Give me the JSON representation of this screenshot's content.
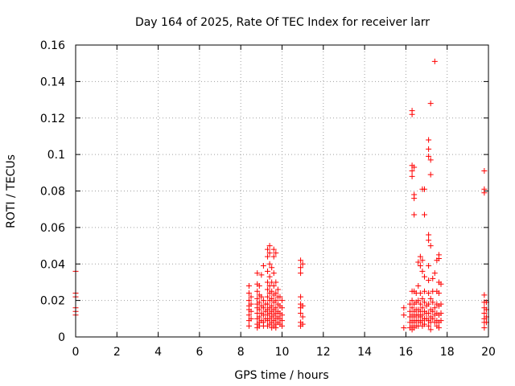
{
  "chart_data": {
    "type": "scatter",
    "title": "Day 164 of 2025, Rate Of TEC Index for receiver larr",
    "xlabel": "GPS time / hours",
    "ylabel": "ROTI / TECUs",
    "xlim": [
      0,
      20
    ],
    "ylim": [
      0,
      0.16
    ],
    "xticks": [
      0,
      2,
      4,
      6,
      8,
      10,
      12,
      14,
      16,
      18,
      20
    ],
    "xtick_labels": [
      "0",
      "2",
      "4",
      "6",
      "8",
      "10",
      "12",
      "14",
      "16",
      "18",
      "20"
    ],
    "yticks": [
      0,
      0.02,
      0.04,
      0.06,
      0.08,
      0.1,
      0.12,
      0.14,
      0.16
    ],
    "ytick_labels": [
      "0",
      "0.02",
      "0.04",
      "0.06",
      "0.08",
      "0.1",
      "0.12",
      "0.14",
      "0.16"
    ],
    "grid": true,
    "marker": "+",
    "color": "#ff0000",
    "series": [
      {
        "name": "ROTI",
        "points": [
          [
            0.0,
            0.036
          ],
          [
            0.0,
            0.024
          ],
          [
            0.0,
            0.022
          ],
          [
            0.0,
            0.016
          ],
          [
            0.0,
            0.014
          ],
          [
            0.0,
            0.012
          ],
          [
            8.4,
            0.028
          ],
          [
            8.4,
            0.024
          ],
          [
            8.4,
            0.02
          ],
          [
            8.4,
            0.017
          ],
          [
            8.4,
            0.015
          ],
          [
            8.4,
            0.012
          ],
          [
            8.4,
            0.009
          ],
          [
            8.4,
            0.006
          ],
          [
            8.5,
            0.022
          ],
          [
            8.5,
            0.018
          ],
          [
            8.5,
            0.014
          ],
          [
            8.5,
            0.01
          ],
          [
            8.8,
            0.035
          ],
          [
            8.8,
            0.029
          ],
          [
            8.8,
            0.025
          ],
          [
            8.8,
            0.021
          ],
          [
            8.8,
            0.018
          ],
          [
            8.8,
            0.016
          ],
          [
            8.8,
            0.013
          ],
          [
            8.8,
            0.01
          ],
          [
            8.8,
            0.007
          ],
          [
            8.8,
            0.005
          ],
          [
            8.9,
            0.028
          ],
          [
            8.9,
            0.023
          ],
          [
            8.9,
            0.019
          ],
          [
            8.9,
            0.015
          ],
          [
            8.9,
            0.011
          ],
          [
            8.9,
            0.008
          ],
          [
            8.9,
            0.006
          ],
          [
            9.0,
            0.034
          ],
          [
            9.0,
            0.022
          ],
          [
            9.0,
            0.017
          ],
          [
            9.0,
            0.013
          ],
          [
            9.0,
            0.009
          ],
          [
            9.1,
            0.039
          ],
          [
            9.1,
            0.02
          ],
          [
            9.1,
            0.016
          ],
          [
            9.1,
            0.012
          ],
          [
            9.1,
            0.008
          ],
          [
            9.1,
            0.006
          ],
          [
            9.2,
            0.018
          ],
          [
            9.2,
            0.014
          ],
          [
            9.2,
            0.01
          ],
          [
            9.3,
            0.048
          ],
          [
            9.3,
            0.044
          ],
          [
            9.3,
            0.036
          ],
          [
            9.3,
            0.03
          ],
          [
            9.3,
            0.026
          ],
          [
            9.3,
            0.022
          ],
          [
            9.3,
            0.018
          ],
          [
            9.3,
            0.015
          ],
          [
            9.3,
            0.012
          ],
          [
            9.3,
            0.009
          ],
          [
            9.3,
            0.006
          ],
          [
            9.4,
            0.05
          ],
          [
            9.4,
            0.046
          ],
          [
            9.4,
            0.04
          ],
          [
            9.4,
            0.033
          ],
          [
            9.4,
            0.028
          ],
          [
            9.4,
            0.024
          ],
          [
            9.4,
            0.02
          ],
          [
            9.4,
            0.016
          ],
          [
            9.4,
            0.013
          ],
          [
            9.4,
            0.01
          ],
          [
            9.4,
            0.007
          ],
          [
            9.5,
            0.038
          ],
          [
            9.5,
            0.03
          ],
          [
            9.5,
            0.025
          ],
          [
            9.5,
            0.021
          ],
          [
            9.5,
            0.017
          ],
          [
            9.5,
            0.014
          ],
          [
            9.5,
            0.011
          ],
          [
            9.5,
            0.008
          ],
          [
            9.5,
            0.005
          ],
          [
            9.6,
            0.048
          ],
          [
            9.6,
            0.044
          ],
          [
            9.6,
            0.035
          ],
          [
            9.6,
            0.028
          ],
          [
            9.6,
            0.023
          ],
          [
            9.6,
            0.019
          ],
          [
            9.6,
            0.015
          ],
          [
            9.6,
            0.012
          ],
          [
            9.6,
            0.009
          ],
          [
            9.6,
            0.006
          ],
          [
            9.7,
            0.046
          ],
          [
            9.7,
            0.03
          ],
          [
            9.7,
            0.024
          ],
          [
            9.7,
            0.02
          ],
          [
            9.7,
            0.016
          ],
          [
            9.7,
            0.013
          ],
          [
            9.7,
            0.01
          ],
          [
            9.7,
            0.007
          ],
          [
            9.7,
            0.005
          ],
          [
            9.8,
            0.026
          ],
          [
            9.8,
            0.022
          ],
          [
            9.8,
            0.018
          ],
          [
            9.8,
            0.014
          ],
          [
            9.8,
            0.011
          ],
          [
            9.8,
            0.008
          ],
          [
            9.9,
            0.022
          ],
          [
            9.9,
            0.017
          ],
          [
            9.9,
            0.013
          ],
          [
            9.9,
            0.01
          ],
          [
            9.9,
            0.007
          ],
          [
            10.0,
            0.02
          ],
          [
            10.0,
            0.016
          ],
          [
            10.0,
            0.012
          ],
          [
            10.0,
            0.009
          ],
          [
            10.0,
            0.006
          ],
          [
            10.9,
            0.042
          ],
          [
            10.9,
            0.038
          ],
          [
            10.9,
            0.035
          ],
          [
            10.9,
            0.022
          ],
          [
            10.9,
            0.018
          ],
          [
            10.9,
            0.016
          ],
          [
            10.9,
            0.013
          ],
          [
            10.9,
            0.008
          ],
          [
            10.9,
            0.006
          ],
          [
            11.0,
            0.04
          ],
          [
            11.0,
            0.017
          ],
          [
            11.0,
            0.011
          ],
          [
            11.0,
            0.007
          ],
          [
            15.9,
            0.016
          ],
          [
            15.9,
            0.012
          ],
          [
            15.9,
            0.005
          ],
          [
            16.2,
            0.018
          ],
          [
            16.2,
            0.014
          ],
          [
            16.2,
            0.011
          ],
          [
            16.2,
            0.008
          ],
          [
            16.2,
            0.005
          ],
          [
            16.3,
            0.124
          ],
          [
            16.3,
            0.122
          ],
          [
            16.3,
            0.094
          ],
          [
            16.3,
            0.091
          ],
          [
            16.3,
            0.088
          ],
          [
            16.3,
            0.025
          ],
          [
            16.3,
            0.02
          ],
          [
            16.3,
            0.016
          ],
          [
            16.3,
            0.012
          ],
          [
            16.3,
            0.009
          ],
          [
            16.3,
            0.006
          ],
          [
            16.3,
            0.004
          ],
          [
            16.4,
            0.093
          ],
          [
            16.4,
            0.078
          ],
          [
            16.4,
            0.076
          ],
          [
            16.4,
            0.067
          ],
          [
            16.4,
            0.025
          ],
          [
            16.4,
            0.018
          ],
          [
            16.4,
            0.014
          ],
          [
            16.4,
            0.011
          ],
          [
            16.4,
            0.008
          ],
          [
            16.4,
            0.005
          ],
          [
            16.5,
            0.024
          ],
          [
            16.5,
            0.019
          ],
          [
            16.5,
            0.015
          ],
          [
            16.5,
            0.012
          ],
          [
            16.5,
            0.009
          ],
          [
            16.5,
            0.006
          ],
          [
            16.6,
            0.041
          ],
          [
            16.6,
            0.028
          ],
          [
            16.6,
            0.02
          ],
          [
            16.6,
            0.015
          ],
          [
            16.6,
            0.012
          ],
          [
            16.6,
            0.009
          ],
          [
            16.6,
            0.006
          ],
          [
            16.7,
            0.044
          ],
          [
            16.7,
            0.039
          ],
          [
            16.7,
            0.024
          ],
          [
            16.7,
            0.018
          ],
          [
            16.7,
            0.014
          ],
          [
            16.7,
            0.011
          ],
          [
            16.7,
            0.008
          ],
          [
            16.8,
            0.081
          ],
          [
            16.8,
            0.042
          ],
          [
            16.8,
            0.036
          ],
          [
            16.8,
            0.021
          ],
          [
            16.8,
            0.016
          ],
          [
            16.8,
            0.012
          ],
          [
            16.8,
            0.009
          ],
          [
            16.8,
            0.006
          ],
          [
            16.9,
            0.081
          ],
          [
            16.9,
            0.067
          ],
          [
            16.9,
            0.033
          ],
          [
            16.9,
            0.025
          ],
          [
            16.9,
            0.019
          ],
          [
            16.9,
            0.014
          ],
          [
            16.9,
            0.01
          ],
          [
            16.9,
            0.007
          ],
          [
            17.0,
            0.017
          ],
          [
            17.0,
            0.013
          ],
          [
            17.0,
            0.01
          ],
          [
            17.1,
            0.108
          ],
          [
            17.1,
            0.103
          ],
          [
            17.1,
            0.099
          ],
          [
            17.1,
            0.056
          ],
          [
            17.1,
            0.053
          ],
          [
            17.1,
            0.039
          ],
          [
            17.1,
            0.031
          ],
          [
            17.1,
            0.024
          ],
          [
            17.1,
            0.018
          ],
          [
            17.1,
            0.013
          ],
          [
            17.1,
            0.009
          ],
          [
            17.1,
            0.006
          ],
          [
            17.2,
            0.128
          ],
          [
            17.2,
            0.097
          ],
          [
            17.2,
            0.089
          ],
          [
            17.2,
            0.05
          ],
          [
            17.2,
            0.021
          ],
          [
            17.2,
            0.015
          ],
          [
            17.2,
            0.011
          ],
          [
            17.2,
            0.008
          ],
          [
            17.2,
            0.004
          ],
          [
            17.3,
            0.032
          ],
          [
            17.3,
            0.025
          ],
          [
            17.3,
            0.019
          ],
          [
            17.3,
            0.014
          ],
          [
            17.3,
            0.01
          ],
          [
            17.4,
            0.151
          ],
          [
            17.4,
            0.035
          ],
          [
            17.4,
            0.016
          ],
          [
            17.4,
            0.012
          ],
          [
            17.4,
            0.008
          ],
          [
            17.5,
            0.042
          ],
          [
            17.5,
            0.025
          ],
          [
            17.5,
            0.018
          ],
          [
            17.5,
            0.013
          ],
          [
            17.5,
            0.009
          ],
          [
            17.5,
            0.006
          ],
          [
            17.6,
            0.045
          ],
          [
            17.6,
            0.043
          ],
          [
            17.6,
            0.03
          ],
          [
            17.6,
            0.024
          ],
          [
            17.6,
            0.017
          ],
          [
            17.6,
            0.012
          ],
          [
            17.6,
            0.008
          ],
          [
            17.6,
            0.005
          ],
          [
            17.7,
            0.029
          ],
          [
            17.7,
            0.018
          ],
          [
            17.7,
            0.013
          ],
          [
            17.7,
            0.009
          ],
          [
            19.8,
            0.091
          ],
          [
            19.8,
            0.081
          ],
          [
            19.8,
            0.079
          ],
          [
            19.8,
            0.023
          ],
          [
            19.8,
            0.019
          ],
          [
            19.8,
            0.016
          ],
          [
            19.8,
            0.013
          ],
          [
            19.8,
            0.01
          ],
          [
            19.8,
            0.008
          ],
          [
            19.8,
            0.005
          ],
          [
            19.9,
            0.019
          ],
          [
            19.9,
            0.015
          ],
          [
            19.9,
            0.011
          ],
          [
            19.9,
            0.008
          ]
        ]
      }
    ]
  }
}
